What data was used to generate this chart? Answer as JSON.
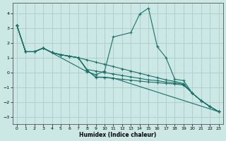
{
  "xlabel": "Humidex (Indice chaleur)",
  "xlim": [
    -0.5,
    23.5
  ],
  "ylim": [
    -3.5,
    4.7
  ],
  "yticks": [
    -3,
    -2,
    -1,
    0,
    1,
    2,
    3,
    4
  ],
  "xticks": [
    0,
    1,
    2,
    3,
    4,
    5,
    6,
    7,
    8,
    9,
    10,
    11,
    12,
    13,
    14,
    15,
    16,
    17,
    18,
    19,
    20,
    21,
    22,
    23
  ],
  "bg_color": "#cce8e4",
  "grid_color": "#aaccca",
  "line_color": "#1a7068",
  "lines": [
    {
      "x": [
        0,
        1,
        2,
        3,
        8,
        9,
        10,
        11,
        13,
        14,
        15,
        16,
        17,
        18,
        19,
        20,
        21,
        22,
        23
      ],
      "y": [
        3.2,
        1.4,
        1.4,
        1.65,
        0.05,
        -0.15,
        0.1,
        2.4,
        2.7,
        3.95,
        4.35,
        1.75,
        1.0,
        -0.45,
        -0.55,
        -1.4,
        -1.9,
        -2.3,
        -2.65
      ]
    },
    {
      "x": [
        0,
        1,
        2,
        3,
        4,
        5,
        6,
        7,
        8,
        9,
        10,
        11,
        12,
        13,
        14,
        15,
        16,
        17,
        18,
        19,
        20,
        21,
        22,
        23
      ],
      "y": [
        3.2,
        1.4,
        1.4,
        1.65,
        1.35,
        1.2,
        1.1,
        1.0,
        0.85,
        0.7,
        0.55,
        0.4,
        0.25,
        0.1,
        -0.05,
        -0.2,
        -0.35,
        -0.5,
        -0.6,
        -0.75,
        -1.4,
        -1.9,
        -2.3,
        -2.65
      ]
    },
    {
      "x": [
        0,
        1,
        2,
        3,
        4,
        5,
        6,
        7,
        8,
        9,
        10,
        11,
        12,
        13,
        14,
        15,
        16,
        17,
        18,
        19,
        20,
        21,
        22,
        23
      ],
      "y": [
        3.2,
        1.4,
        1.4,
        1.65,
        1.35,
        1.2,
        1.1,
        1.0,
        0.2,
        0.1,
        0.0,
        -0.1,
        -0.2,
        -0.3,
        -0.4,
        -0.5,
        -0.55,
        -0.65,
        -0.7,
        -0.8,
        -1.4,
        -1.9,
        -2.3,
        -2.65
      ]
    },
    {
      "x": [
        0,
        1,
        2,
        3,
        4,
        5,
        6,
        7,
        8,
        9,
        10,
        11,
        23
      ],
      "y": [
        3.2,
        1.4,
        1.4,
        1.65,
        1.35,
        1.2,
        1.1,
        1.0,
        0.15,
        -0.3,
        -0.32,
        -0.38,
        -2.65
      ]
    },
    {
      "x": [
        0,
        1,
        2,
        3,
        4,
        5,
        6,
        7,
        8,
        9,
        10,
        11,
        12,
        13,
        14,
        15,
        16,
        17,
        18,
        19,
        20,
        21,
        22,
        23
      ],
      "y": [
        3.2,
        1.4,
        1.4,
        1.65,
        1.35,
        1.2,
        1.1,
        1.0,
        0.15,
        -0.32,
        -0.34,
        -0.4,
        -0.46,
        -0.52,
        -0.58,
        -0.64,
        -0.68,
        -0.74,
        -0.78,
        -0.85,
        -1.4,
        -1.9,
        -2.3,
        -2.65
      ]
    }
  ]
}
